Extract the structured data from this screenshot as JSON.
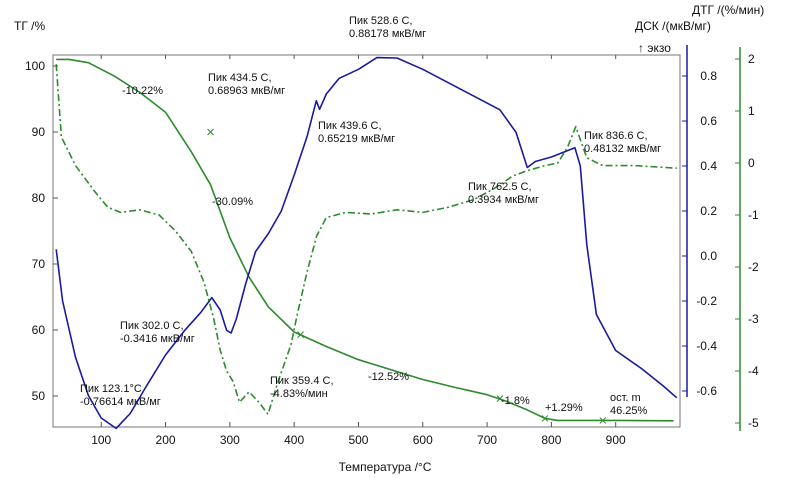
{
  "chart_data": {
    "type": "line",
    "xlabel": "Температура /°C",
    "xlim": [
      25,
      1000
    ],
    "xticks": [
      100,
      200,
      300,
      400,
      500,
      600,
      700,
      800,
      900
    ],
    "axes": {
      "tg": {
        "label": "ТГ /%",
        "ylim": [
          45,
          102
        ],
        "ticks": [
          100,
          90,
          80,
          70,
          60,
          50
        ],
        "color": "#000000"
      },
      "dsc": {
        "label": "ДСК /(мкВ/мг)",
        "label2": "↑ экзо",
        "ylim": [
          -0.75,
          0.92
        ],
        "ticks": [
          0.8,
          0.6,
          0.4,
          0.2,
          0.0,
          -0.2,
          -0.4,
          -0.6
        ],
        "tick_labels": [
          "0.8",
          "0.6",
          "0.4",
          "0.2",
          "0.0",
          "-0.2",
          "-0.4",
          "-0.6"
        ],
        "color": "#1a1aa0"
      },
      "dtg": {
        "label": "ДТГ /(%/мин)",
        "ylim": [
          -5.3,
          2.2
        ],
        "ticks": [
          2,
          1,
          0,
          -1,
          -2,
          -3,
          -4,
          -5
        ],
        "color": "#2d8a2d"
      }
    },
    "series": [
      {
        "name": "ТГ",
        "axis": "tg",
        "color": "#2d8a2d",
        "style": "solid",
        "points": [
          [
            30,
            101
          ],
          [
            50,
            101
          ],
          [
            80,
            100.5
          ],
          [
            120,
            98.5
          ],
          [
            160,
            96
          ],
          [
            200,
            93
          ],
          [
            240,
            87
          ],
          [
            270,
            82
          ],
          [
            300,
            74
          ],
          [
            330,
            68
          ],
          [
            360,
            63.5
          ],
          [
            400,
            59.7
          ],
          [
            450,
            57.5
          ],
          [
            500,
            55.5
          ],
          [
            550,
            54.0
          ],
          [
            600,
            52.5
          ],
          [
            650,
            51.3
          ],
          [
            700,
            50.2
          ],
          [
            730,
            49.2
          ],
          [
            760,
            48.0
          ],
          [
            790,
            46.6
          ],
          [
            810,
            46.3
          ],
          [
            850,
            46.3
          ],
          [
            900,
            46.3
          ],
          [
            990,
            46.25
          ]
        ]
      },
      {
        "name": "ДСК",
        "axis": "dsc",
        "color": "#1a1aa0",
        "style": "solid",
        "points": [
          [
            30,
            0.03
          ],
          [
            40,
            -0.2
          ],
          [
            60,
            -0.45
          ],
          [
            80,
            -0.62
          ],
          [
            100,
            -0.72
          ],
          [
            123.1,
            -0.766
          ],
          [
            145,
            -0.7
          ],
          [
            170,
            -0.58
          ],
          [
            200,
            -0.44
          ],
          [
            230,
            -0.33
          ],
          [
            255,
            -0.25
          ],
          [
            272,
            -0.185
          ],
          [
            285,
            -0.24
          ],
          [
            295,
            -0.33
          ],
          [
            302,
            -0.342
          ],
          [
            310,
            -0.28
          ],
          [
            325,
            -0.12
          ],
          [
            340,
            0.02
          ],
          [
            360,
            0.1
          ],
          [
            380,
            0.2
          ],
          [
            400,
            0.36
          ],
          [
            420,
            0.53
          ],
          [
            434.5,
            0.6896
          ],
          [
            439.6,
            0.6522
          ],
          [
            450,
            0.72
          ],
          [
            470,
            0.79
          ],
          [
            500,
            0.83
          ],
          [
            528.6,
            0.8818
          ],
          [
            560,
            0.88
          ],
          [
            600,
            0.83
          ],
          [
            640,
            0.77
          ],
          [
            680,
            0.71
          ],
          [
            720,
            0.65
          ],
          [
            745,
            0.55
          ],
          [
            762.5,
            0.3934
          ],
          [
            775,
            0.42
          ],
          [
            800,
            0.44
          ],
          [
            836.6,
            0.4813
          ],
          [
            845,
            0.4
          ],
          [
            855,
            0.05
          ],
          [
            870,
            -0.26
          ],
          [
            900,
            -0.42
          ],
          [
            940,
            -0.5
          ],
          [
            975,
            -0.58
          ],
          [
            995,
            -0.63
          ]
        ]
      },
      {
        "name": "ДТГ",
        "axis": "dtg",
        "color": "#2d8a2d",
        "style": "dashdot",
        "points": [
          [
            30,
            1.9
          ],
          [
            38,
            0.5
          ],
          [
            60,
            -0.05
          ],
          [
            90,
            -0.55
          ],
          [
            110,
            -0.85
          ],
          [
            130,
            -0.95
          ],
          [
            160,
            -0.9
          ],
          [
            190,
            -1.0
          ],
          [
            215,
            -1.3
          ],
          [
            240,
            -1.7
          ],
          [
            260,
            -2.3
          ],
          [
            275,
            -3.0
          ],
          [
            285,
            -3.6
          ],
          [
            295,
            -4.0
          ],
          [
            305,
            -4.2
          ],
          [
            315,
            -4.6
          ],
          [
            330,
            -4.4
          ],
          [
            345,
            -4.6
          ],
          [
            359.4,
            -4.83
          ],
          [
            375,
            -4.2
          ],
          [
            395,
            -3.5
          ],
          [
            405,
            -2.9
          ],
          [
            420,
            -2.1
          ],
          [
            435,
            -1.4
          ],
          [
            450,
            -1.05
          ],
          [
            480,
            -0.95
          ],
          [
            520,
            -0.98
          ],
          [
            560,
            -0.9
          ],
          [
            600,
            -0.95
          ],
          [
            640,
            -0.85
          ],
          [
            680,
            -0.7
          ],
          [
            710,
            -0.5
          ],
          [
            740,
            -0.25
          ],
          [
            762,
            -0.15
          ],
          [
            790,
            -0.05
          ],
          [
            810,
            0.0
          ],
          [
            825,
            0.3
          ],
          [
            838,
            0.7
          ],
          [
            845,
            0.45
          ],
          [
            855,
            0.1
          ],
          [
            880,
            -0.05
          ],
          [
            930,
            -0.05
          ],
          [
            995,
            -0.1
          ]
        ]
      }
    ],
    "annotations": [
      {
        "id": "a1",
        "lines": [
          "Пик 123.1°C",
          "-0.76614 мкВ/мг"
        ]
      },
      {
        "id": "a2",
        "lines": [
          "Пик 302.0 C,",
          "-0.3416 мкВ/мг"
        ]
      },
      {
        "id": "a3",
        "lines": [
          "Пик 434.5 C,",
          "0.68963 мкВ/мг"
        ]
      },
      {
        "id": "a4",
        "lines": [
          "Пик 439.6 C,",
          "0.65219 мкВ/мг"
        ]
      },
      {
        "id": "a5",
        "lines": [
          "Пик 528.6 C,",
          "0.88178 мкВ/мг"
        ]
      },
      {
        "id": "a6",
        "lines": [
          "Пик 762.5 C,",
          "0.3934 мкВ/мг"
        ]
      },
      {
        "id": "a7",
        "lines": [
          "Пик 836.6 C,",
          "0.48132 мкВ/мг"
        ]
      },
      {
        "id": "a8",
        "lines": [
          "Пик 359.4 C,",
          "-4.83%/мин"
        ]
      },
      {
        "id": "m1",
        "lines": [
          "-10.22%"
        ]
      },
      {
        "id": "m2",
        "lines": [
          "-30.09%"
        ]
      },
      {
        "id": "m3",
        "lines": [
          "-12.52%"
        ]
      },
      {
        "id": "m4",
        "lines": [
          "-1.8%"
        ]
      },
      {
        "id": "m5",
        "lines": [
          "+1.29%"
        ]
      },
      {
        "id": "m6",
        "lines": [
          "ост. m",
          "46.25%"
        ]
      }
    ]
  }
}
